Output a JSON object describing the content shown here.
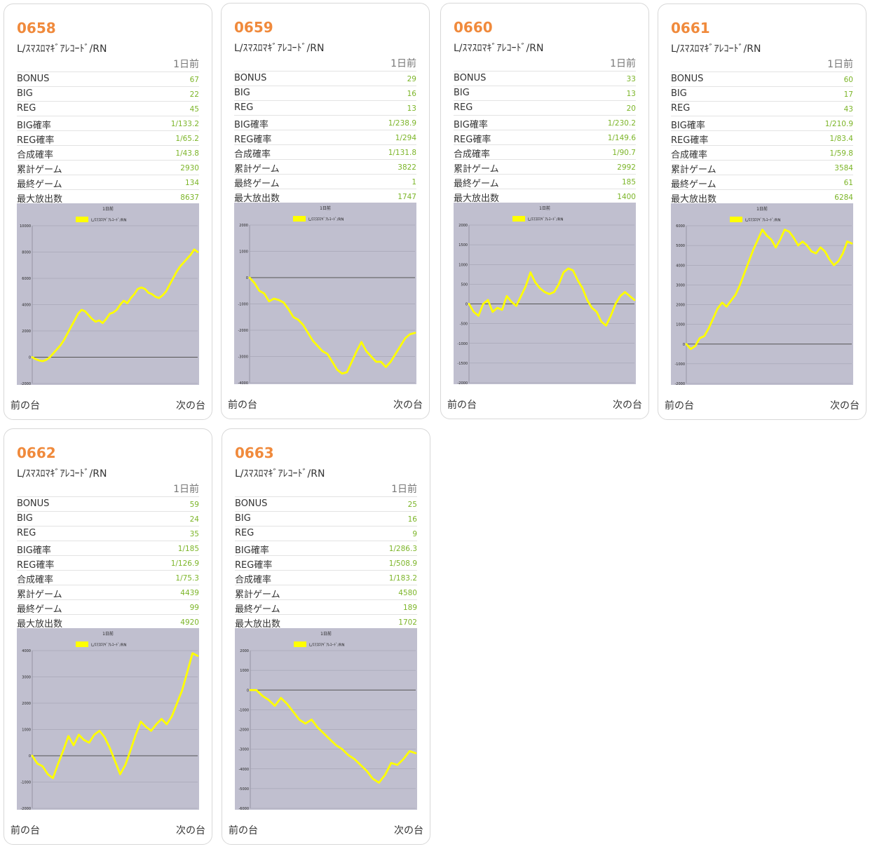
{
  "cards": [
    {
      "number": "0658",
      "machine": "L/ｽﾏｽﾛﾏｷﾞｱﾚｺｰﾄﾞ/RN",
      "day_label": "1日前",
      "stats": [
        {
          "label": "BONUS",
          "value": "67"
        },
        {
          "label": "BIG",
          "value": "22"
        },
        {
          "label": "REG",
          "value": "45"
        },
        {
          "label": "BIG確率",
          "value": "1/133.2"
        },
        {
          "label": "REG確率",
          "value": "1/65.2"
        },
        {
          "label": "合成確率",
          "value": "1/43.8"
        },
        {
          "label": "累計ゲーム",
          "value": "2930"
        },
        {
          "label": "最終ゲーム",
          "value": "134"
        },
        {
          "label": "最大放出数",
          "value": "8637"
        }
      ],
      "prev_label": "前の台",
      "next_label": "次の台",
      "chart_data": {
        "type": "line",
        "title": "1日前",
        "series": [
          {
            "name": "L/ｽﾏｽﾛﾏｷﾞｱﾚｺｰﾄﾞ/RN",
            "color": "#ffff00",
            "values": [
              0,
              -150,
              -250,
              -300,
              -200,
              0,
              300,
              600,
              900,
              1300,
              1800,
              2300,
              2800,
              3300,
              3600,
              3500,
              3200,
              2900,
              2700,
              2800,
              2600,
              2900,
              3300,
              3400,
              3600,
              4000,
              4300,
              4100,
              4500,
              4800,
              5200,
              5300,
              5200,
              4900,
              4800,
              4600,
              4500,
              4700,
              5000,
              5500,
              6000,
              6500,
              6900,
              7200,
              7500,
              7800,
              8200,
              8000
            ]
          }
        ],
        "y_ticks": [
          "10000",
          "8000",
          "6000",
          "4000",
          "2000",
          "0",
          "-2000"
        ],
        "ylim": [
          -2000,
          10000
        ],
        "grid": true
      }
    },
    {
      "number": "0659",
      "machine": "L/ｽﾏｽﾛﾏｷﾞｱﾚｺｰﾄﾞ/RN",
      "day_label": "1日前",
      "stats": [
        {
          "label": "BONUS",
          "value": "29"
        },
        {
          "label": "BIG",
          "value": "16"
        },
        {
          "label": "REG",
          "value": "13"
        },
        {
          "label": "BIG確率",
          "value": "1/238.9"
        },
        {
          "label": "REG確率",
          "value": "1/294"
        },
        {
          "label": "合成確率",
          "value": "1/131.8"
        },
        {
          "label": "累計ゲーム",
          "value": "3822"
        },
        {
          "label": "最終ゲーム",
          "value": "1"
        },
        {
          "label": "最大放出数",
          "value": "1747"
        }
      ],
      "prev_label": "前の台",
      "next_label": "次の台",
      "chart_data": {
        "type": "line",
        "title": "1日前",
        "series": [
          {
            "name": "L/ｽﾏｽﾛﾏｷﾞｱﾚｺｰﾄﾞ/RN",
            "color": "#ffff00",
            "values": [
              0,
              -200,
              -500,
              -600,
              -900,
              -800,
              -850,
              -950,
              -1200,
              -1500,
              -1600,
              -1800,
              -2100,
              -2400,
              -2600,
              -2800,
              -2900,
              -3200,
              -3500,
              -3650,
              -3600,
              -3200,
              -2800,
              -2450,
              -2800,
              -3000,
              -3200,
              -3200,
              -3400,
              -3200,
              -2900,
              -2600,
              -2300,
              -2150,
              -2100
            ]
          }
        ],
        "y_ticks": [
          "2000",
          "1000",
          "0",
          "-1000",
          "-2000",
          "-3000",
          "-4000"
        ],
        "ylim": [
          -4000,
          2000
        ],
        "grid": true
      }
    },
    {
      "number": "0660",
      "machine": "L/ｽﾏｽﾛﾏｷﾞｱﾚｺｰﾄﾞ/RN",
      "day_label": "1日前",
      "stats": [
        {
          "label": "BONUS",
          "value": "33"
        },
        {
          "label": "BIG",
          "value": "13"
        },
        {
          "label": "REG",
          "value": "20"
        },
        {
          "label": "BIG確率",
          "value": "1/230.2"
        },
        {
          "label": "REG確率",
          "value": "1/149.6"
        },
        {
          "label": "合成確率",
          "value": "1/90.7"
        },
        {
          "label": "累計ゲーム",
          "value": "2992"
        },
        {
          "label": "最終ゲーム",
          "value": "185"
        },
        {
          "label": "最大放出数",
          "value": "1400"
        }
      ],
      "prev_label": "前の台",
      "next_label": "次の台",
      "chart_data": {
        "type": "line",
        "title": "1日前",
        "series": [
          {
            "name": "L/ｽﾏｽﾛﾏｷﾞｱﾚｺｰﾄﾞ/RN",
            "color": "#ffff00",
            "values": [
              0,
              -200,
              -300,
              0,
              100,
              -200,
              -100,
              -150,
              200,
              50,
              -50,
              200,
              450,
              800,
              550,
              400,
              300,
              250,
              300,
              500,
              800,
              900,
              850,
              600,
              400,
              100,
              -100,
              -200,
              -450,
              -550,
              -300,
              0,
              200,
              300,
              200,
              100
            ]
          }
        ],
        "y_ticks": [
          "2000",
          "1500",
          "1000",
          "500",
          "0",
          "-500",
          "-1000",
          "-1500",
          "-2000"
        ],
        "ylim": [
          -2000,
          2000
        ],
        "grid": true
      }
    },
    {
      "number": "0661",
      "machine": "L/ｽﾏｽﾛﾏｷﾞｱﾚｺｰﾄﾞ/RN",
      "day_label": "1日前",
      "stats": [
        {
          "label": "BONUS",
          "value": "60"
        },
        {
          "label": "BIG",
          "value": "17"
        },
        {
          "label": "REG",
          "value": "43"
        },
        {
          "label": "BIG確率",
          "value": "1/210.9"
        },
        {
          "label": "REG確率",
          "value": "1/83.4"
        },
        {
          "label": "合成確率",
          "value": "1/59.8"
        },
        {
          "label": "累計ゲーム",
          "value": "3584"
        },
        {
          "label": "最終ゲーム",
          "value": "61"
        },
        {
          "label": "最大放出数",
          "value": "6284"
        }
      ],
      "prev_label": "前の台",
      "next_label": "次の台",
      "chart_data": {
        "type": "line",
        "title": "1日前",
        "series": [
          {
            "name": "L/ｽﾏｽﾛﾏｷﾞｱﾚｺｰﾄﾞ/RN",
            "color": "#ffff00",
            "values": [
              0,
              -250,
              -100,
              300,
              400,
              800,
              1300,
              1800,
              2100,
              1900,
              2200,
              2500,
              3000,
              3600,
              4200,
              4800,
              5300,
              5800,
              5500,
              5300,
              4900,
              5300,
              5800,
              5700,
              5400,
              5000,
              5200,
              5000,
              4700,
              4600,
              4900,
              4700,
              4300,
              4000,
              4200,
              4600,
              5200,
              5100
            ]
          }
        ],
        "y_ticks": [
          "6000",
          "5000",
          "4000",
          "3000",
          "2000",
          "1000",
          "0",
          "-1000",
          "-2000"
        ],
        "ylim": [
          -2000,
          6000
        ],
        "grid": true
      }
    },
    {
      "number": "0662",
      "machine": "L/ｽﾏｽﾛﾏｷﾞｱﾚｺｰﾄﾞ/RN",
      "day_label": "1日前",
      "stats": [
        {
          "label": "BONUS",
          "value": "59"
        },
        {
          "label": "BIG",
          "value": "24"
        },
        {
          "label": "REG",
          "value": "35"
        },
        {
          "label": "BIG確率",
          "value": "1/185"
        },
        {
          "label": "REG確率",
          "value": "1/126.9"
        },
        {
          "label": "合成確率",
          "value": "1/75.3"
        },
        {
          "label": "累計ゲーム",
          "value": "4439"
        },
        {
          "label": "最終ゲーム",
          "value": "99"
        },
        {
          "label": "最大放出数",
          "value": "4920"
        }
      ],
      "prev_label": "前の台",
      "next_label": "次の台",
      "chart_data": {
        "type": "line",
        "title": "1日前",
        "series": [
          {
            "name": "L/ｽﾏｽﾛﾏｷﾞｱﾚｺｰﾄﾞ/RN",
            "color": "#ffff00",
            "values": [
              0,
              -300,
              -400,
              -700,
              -850,
              -300,
              200,
              750,
              400,
              800,
              600,
              500,
              800,
              950,
              700,
              300,
              -200,
              -700,
              -350,
              200,
              800,
              1300,
              1100,
              950,
              1200,
              1400,
              1200,
              1500,
              2000,
              2500,
              3200,
              3900,
              3800
            ]
          }
        ],
        "y_ticks": [
          "4000",
          "3000",
          "2000",
          "1000",
          "0",
          "-1000",
          "-2000"
        ],
        "ylim": [
          -2000,
          4000
        ],
        "grid": true
      }
    },
    {
      "number": "0663",
      "machine": "L/ｽﾏｽﾛﾏｷﾞｱﾚｺｰﾄﾞ/RN",
      "day_label": "1日前",
      "stats": [
        {
          "label": "BONUS",
          "value": "25"
        },
        {
          "label": "BIG",
          "value": "16"
        },
        {
          "label": "REG",
          "value": "9"
        },
        {
          "label": "BIG確率",
          "value": "1/286.3"
        },
        {
          "label": "REG確率",
          "value": "1/508.9"
        },
        {
          "label": "合成確率",
          "value": "1/183.2"
        },
        {
          "label": "累計ゲーム",
          "value": "4580"
        },
        {
          "label": "最終ゲーム",
          "value": "189"
        },
        {
          "label": "最大放出数",
          "value": "1702"
        }
      ],
      "prev_label": "前の台",
      "next_label": "次の台",
      "chart_data": {
        "type": "line",
        "title": "1日前",
        "series": [
          {
            "name": "L/ｽﾏｽﾛﾏｷﾞｱﾚｺｰﾄﾞ/RN",
            "color": "#ffff00",
            "values": [
              0,
              0,
              -300,
              -500,
              -800,
              -400,
              -700,
              -1100,
              -1500,
              -1700,
              -1500,
              -1900,
              -2200,
              -2500,
              -2800,
              -3000,
              -3300,
              -3500,
              -3800,
              -4100,
              -4500,
              -4700,
              -4300,
              -3700,
              -3800,
              -3500,
              -3100,
              -3200
            ]
          }
        ],
        "y_ticks": [
          "2000",
          "1000",
          "0",
          "-1000",
          "-2000",
          "-3000",
          "-4000",
          "-5000",
          "-6000"
        ],
        "ylim": [
          -6000,
          2000
        ],
        "grid": true
      }
    }
  ]
}
